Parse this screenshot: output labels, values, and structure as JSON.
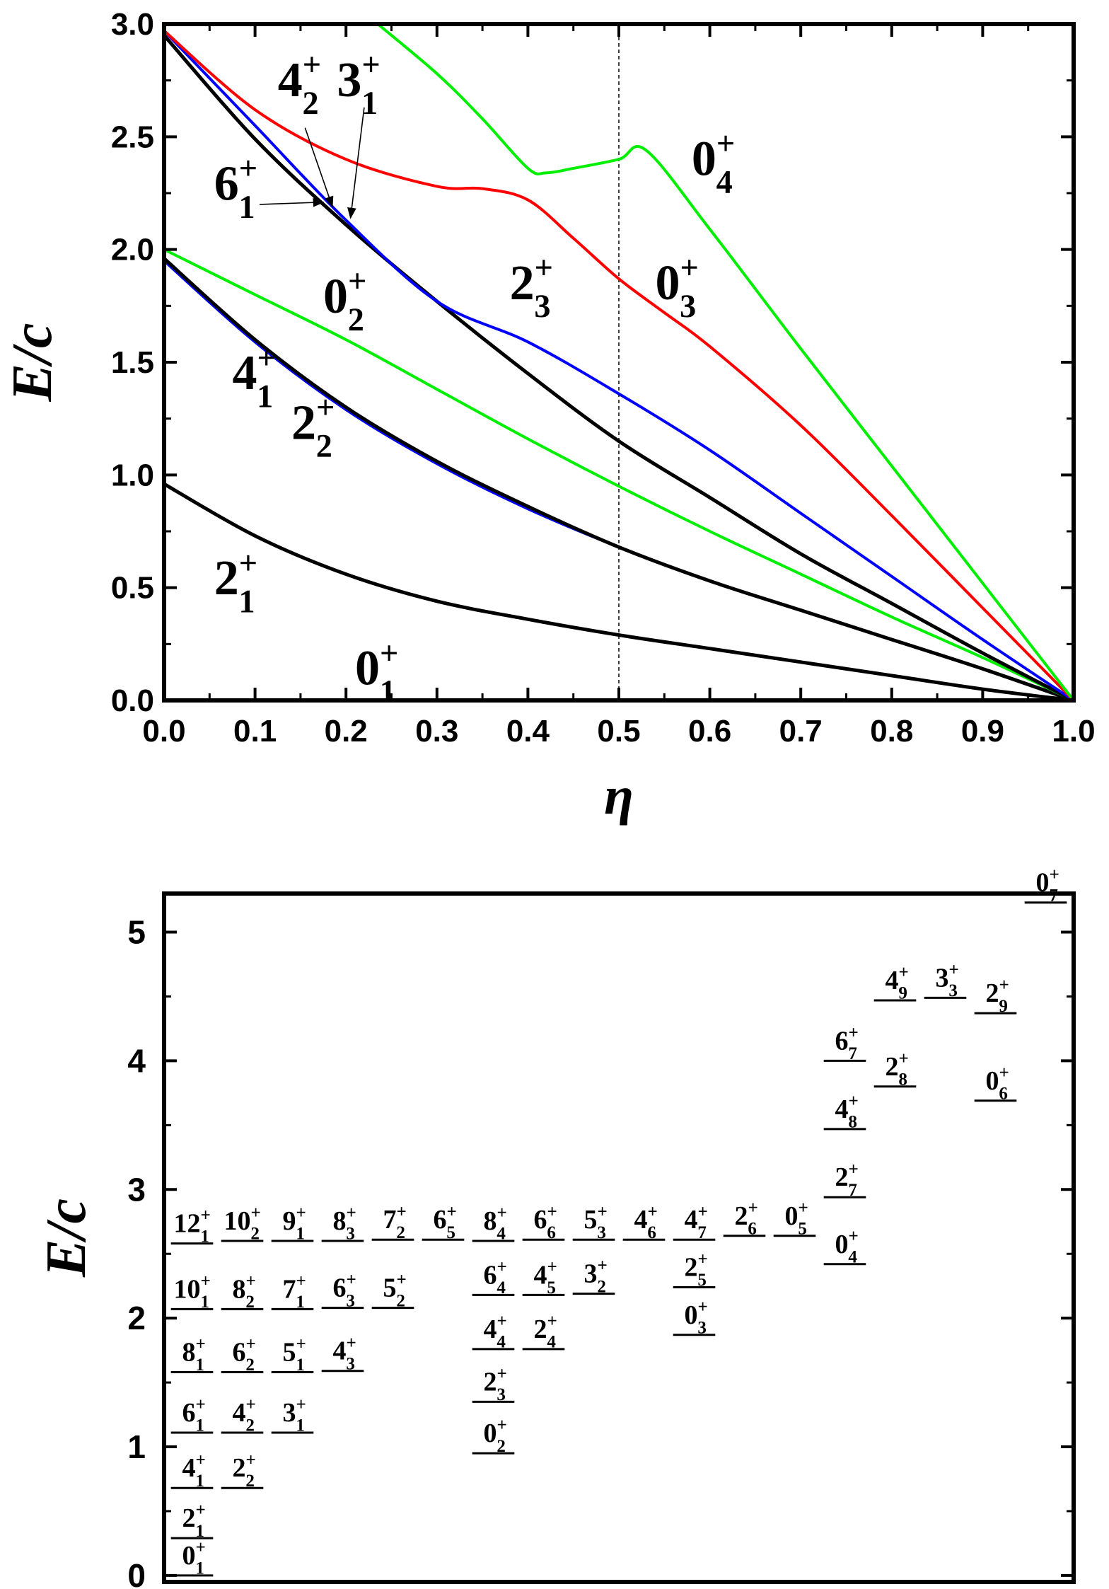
{
  "chart_data": [
    {
      "type": "line",
      "xlabel": "η",
      "ylabel": "E/c",
      "xlim": [
        0.0,
        1.0
      ],
      "ylim": [
        0.0,
        3.0
      ],
      "x_ticks": [
        "0.0",
        "0.1",
        "0.2",
        "0.3",
        "0.4",
        "0.5",
        "0.6",
        "0.7",
        "0.8",
        "0.9",
        "1.0"
      ],
      "y_ticks": [
        "0.0",
        "0.5",
        "1.0",
        "1.5",
        "2.0",
        "2.5",
        "3.0"
      ],
      "reference_line_x": 0.5,
      "series": [
        {
          "color": "#000000",
          "x": [
            0,
            0.1,
            0.2,
            0.3,
            0.4,
            0.5,
            0.6,
            0.7,
            0.8,
            0.9,
            1.0
          ],
          "y": [
            0.96,
            0.73,
            0.56,
            0.44,
            0.36,
            0.29,
            0.23,
            0.17,
            0.11,
            0.05,
            0.0
          ]
        },
        {
          "color": "#0000ff",
          "x": [
            0,
            0.1,
            0.2,
            0.3,
            0.4,
            0.5,
            0.6,
            0.7,
            0.8,
            0.9,
            1.0
          ],
          "y": [
            1.95,
            1.59,
            1.29,
            1.05,
            0.85,
            0.68,
            0.53,
            0.4,
            0.27,
            0.14,
            0.0
          ]
        },
        {
          "color": "#000000",
          "x": [
            0,
            0.1,
            0.2,
            0.3,
            0.4,
            0.5,
            0.6,
            0.7,
            0.8,
            0.9,
            1.0
          ],
          "y": [
            1.96,
            1.6,
            1.3,
            1.06,
            0.86,
            0.68,
            0.53,
            0.4,
            0.27,
            0.14,
            0.0
          ]
        },
        {
          "color": "#00ee00",
          "x": [
            0,
            0.1,
            0.2,
            0.3,
            0.4,
            0.5,
            0.6,
            0.7,
            0.8,
            0.9,
            1.0
          ],
          "y": [
            2.0,
            1.8,
            1.6,
            1.38,
            1.16,
            0.95,
            0.75,
            0.56,
            0.37,
            0.19,
            0.0
          ]
        },
        {
          "color": "#000000",
          "x": [
            0,
            0.1,
            0.2,
            0.3,
            0.4,
            0.5,
            0.6,
            0.7,
            0.8,
            0.9,
            1.0
          ],
          "y": [
            2.95,
            2.49,
            2.11,
            1.77,
            1.45,
            1.15,
            0.9,
            0.65,
            0.43,
            0.21,
            0.0
          ]
        },
        {
          "color": "#0000ff",
          "x": [
            0,
            0.1,
            0.2,
            0.3,
            0.4,
            0.5,
            0.6,
            0.7,
            0.8,
            0.9,
            1.0
          ],
          "y": [
            2.97,
            2.55,
            2.13,
            1.77,
            1.59,
            1.36,
            1.11,
            0.83,
            0.55,
            0.27,
            0.0
          ]
        },
        {
          "color": "#ff0000",
          "x": [
            0,
            0.1,
            0.2,
            0.3,
            0.35,
            0.4,
            0.45,
            0.5,
            0.55,
            0.6,
            0.7,
            0.8,
            0.9,
            1.0
          ],
          "y": [
            2.97,
            2.62,
            2.4,
            2.28,
            2.27,
            2.22,
            2.05,
            1.87,
            1.72,
            1.57,
            1.22,
            0.82,
            0.41,
            0.0
          ]
        },
        {
          "color": "#00ee00",
          "x": [
            0.235,
            0.3,
            0.35,
            0.4,
            0.42,
            0.45,
            0.5,
            0.53,
            0.6,
            0.7,
            0.8,
            0.9,
            1.0
          ],
          "y": [
            3.0,
            2.78,
            2.58,
            2.36,
            2.34,
            2.36,
            2.4,
            2.44,
            2.09,
            1.56,
            1.04,
            0.52,
            0.0
          ]
        }
      ],
      "annotations": [
        {
          "main": "0",
          "sup": "+",
          "sub": "1",
          "x": 0.21,
          "y": 0.07
        },
        {
          "main": "2",
          "sup": "+",
          "sub": "1",
          "x": 0.055,
          "y": 0.47
        },
        {
          "main": "4",
          "sup": "+",
          "sub": "1",
          "x": 0.075,
          "y": 1.38
        },
        {
          "main": "2",
          "sup": "+",
          "sub": "2",
          "x": 0.14,
          "y": 1.16
        },
        {
          "main": "0",
          "sup": "+",
          "sub": "2",
          "x": 0.175,
          "y": 1.72
        },
        {
          "main": "6",
          "sup": "+",
          "sub": "1",
          "x": 0.055,
          "y": 2.22
        },
        {
          "main": "4",
          "sup": "+",
          "sub": "2",
          "x": 0.125,
          "y": 2.68
        },
        {
          "main": "3",
          "sup": "+",
          "sub": "1",
          "x": 0.19,
          "y": 2.68
        },
        {
          "main": "2",
          "sup": "+",
          "sub": "3",
          "x": 0.38,
          "y": 1.78
        },
        {
          "main": "0",
          "sup": "+",
          "sub": "3",
          "x": 0.54,
          "y": 1.78
        },
        {
          "main": "0",
          "sup": "+",
          "sub": "4",
          "x": 0.58,
          "y": 2.33
        }
      ]
    },
    {
      "type": "level-scheme",
      "ylabel": "E/c",
      "ylim": [
        -0.05,
        5.3
      ],
      "y_ticks": [
        "0",
        "1",
        "2",
        "3",
        "4",
        "5"
      ],
      "columns": [
        {
          "levels": [
            {
              "main": "0",
              "sup": "+",
              "sub": "1",
              "e": 0.0
            },
            {
              "main": "2",
              "sup": "+",
              "sub": "1",
              "e": 0.29
            },
            {
              "main": "4",
              "sup": "+",
              "sub": "1",
              "e": 0.68
            },
            {
              "main": "6",
              "sup": "+",
              "sub": "1",
              "e": 1.11
            },
            {
              "main": "8",
              "sup": "+",
              "sub": "1",
              "e": 1.58
            },
            {
              "main": "10",
              "sup": "+",
              "sub": "1",
              "e": 2.07
            },
            {
              "main": "12",
              "sup": "+",
              "sub": "1",
              "e": 2.58
            }
          ]
        },
        {
          "levels": [
            {
              "main": "2",
              "sup": "+",
              "sub": "2",
              "e": 0.68
            },
            {
              "main": "4",
              "sup": "+",
              "sub": "2",
              "e": 1.11
            },
            {
              "main": "6",
              "sup": "+",
              "sub": "2",
              "e": 1.58
            },
            {
              "main": "8",
              "sup": "+",
              "sub": "2",
              "e": 2.07
            },
            {
              "main": "10",
              "sup": "+",
              "sub": "2",
              "e": 2.6
            }
          ]
        },
        {
          "levels": [
            {
              "main": "3",
              "sup": "+",
              "sub": "1",
              "e": 1.11
            },
            {
              "main": "5",
              "sup": "+",
              "sub": "1",
              "e": 1.58
            },
            {
              "main": "7",
              "sup": "+",
              "sub": "1",
              "e": 2.07
            },
            {
              "main": "9",
              "sup": "+",
              "sub": "1",
              "e": 2.6
            }
          ]
        },
        {
          "levels": [
            {
              "main": "4",
              "sup": "+",
              "sub": "3",
              "e": 1.59
            },
            {
              "main": "6",
              "sup": "+",
              "sub": "3",
              "e": 2.08
            },
            {
              "main": "8",
              "sup": "+",
              "sub": "3",
              "e": 2.6
            }
          ]
        },
        {
          "levels": [
            {
              "main": "5",
              "sup": "+",
              "sub": "2",
              "e": 2.08
            },
            {
              "main": "7",
              "sup": "+",
              "sub": "2",
              "e": 2.61
            }
          ]
        },
        {
          "levels": [
            {
              "main": "6",
              "sup": "+",
              "sub": "5",
              "e": 2.61
            }
          ]
        },
        {
          "levels": [
            {
              "main": "0",
              "sup": "+",
              "sub": "2",
              "e": 0.95
            },
            {
              "main": "2",
              "sup": "+",
              "sub": "3",
              "e": 1.35
            },
            {
              "main": "4",
              "sup": "+",
              "sub": "4",
              "e": 1.76
            },
            {
              "main": "6",
              "sup": "+",
              "sub": "4",
              "e": 2.18
            },
            {
              "main": "8",
              "sup": "+",
              "sub": "4",
              "e": 2.6
            }
          ]
        },
        {
          "levels": [
            {
              "main": "2",
              "sup": "+",
              "sub": "4",
              "e": 1.76
            },
            {
              "main": "4",
              "sup": "+",
              "sub": "5",
              "e": 2.18
            },
            {
              "main": "6",
              "sup": "+",
              "sub": "6",
              "e": 2.61
            }
          ]
        },
        {
          "levels": [
            {
              "main": "3",
              "sup": "+",
              "sub": "2",
              "e": 2.19
            },
            {
              "main": "5",
              "sup": "+",
              "sub": "3",
              "e": 2.61
            }
          ]
        },
        {
          "levels": [
            {
              "main": "4",
              "sup": "+",
              "sub": "6",
              "e": 2.61
            }
          ]
        },
        {
          "levels": [
            {
              "main": "0",
              "sup": "+",
              "sub": "3",
              "e": 1.87
            },
            {
              "main": "2",
              "sup": "+",
              "sub": "5",
              "e": 2.24
            },
            {
              "main": "4",
              "sup": "+",
              "sub": "7",
              "e": 2.61
            }
          ]
        },
        {
          "levels": [
            {
              "main": "2",
              "sup": "+",
              "sub": "6",
              "e": 2.64
            }
          ]
        },
        {
          "levels": [
            {
              "main": "0",
              "sup": "+",
              "sub": "5",
              "e": 2.64
            }
          ]
        },
        {
          "levels": [
            {
              "main": "0",
              "sup": "+",
              "sub": "4",
              "e": 2.42
            },
            {
              "main": "2",
              "sup": "+",
              "sub": "7",
              "e": 2.94
            },
            {
              "main": "4",
              "sup": "+",
              "sub": "8",
              "e": 3.47
            },
            {
              "main": "6",
              "sup": "+",
              "sub": "7",
              "e": 4.0
            }
          ]
        },
        {
          "levels": [
            {
              "main": "2",
              "sup": "+",
              "sub": "8",
              "e": 3.8
            },
            {
              "main": "4",
              "sup": "+",
              "sub": "9",
              "e": 4.47
            }
          ]
        },
        {
          "levels": [
            {
              "main": "3",
              "sup": "+",
              "sub": "3",
              "e": 4.49
            }
          ]
        },
        {
          "levels": [
            {
              "main": "0",
              "sup": "+",
              "sub": "6",
              "e": 3.69
            },
            {
              "main": "2",
              "sup": "+",
              "sub": "9",
              "e": 4.37
            }
          ]
        },
        {
          "levels": [
            {
              "main": "0",
              "sup": "+",
              "sub": "7",
              "e": 5.23
            }
          ]
        }
      ]
    }
  ]
}
